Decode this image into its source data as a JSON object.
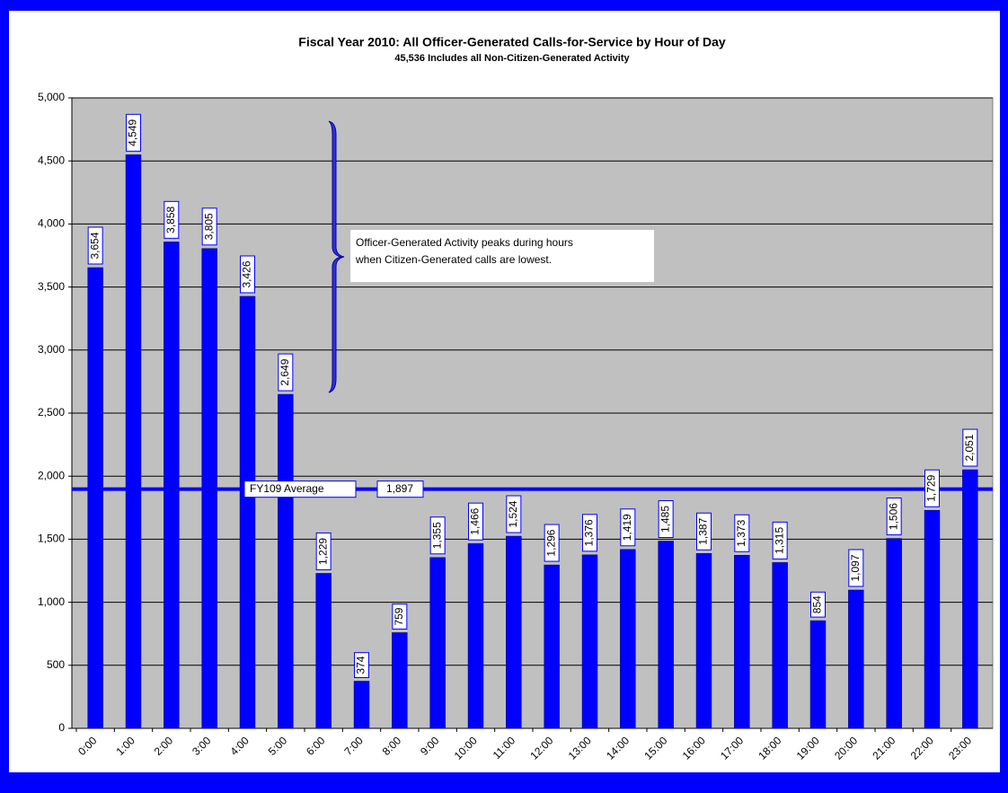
{
  "chart_data": {
    "type": "bar",
    "title": "Fiscal Year 2010: All Officer-Generated  Calls-for-Service by Hour of Day",
    "subtitle": "45,536 Includes all Non-Citizen-Generated  Activity",
    "categories": [
      "0:00",
      "1:00",
      "2:00",
      "3:00",
      "4:00",
      "5:00",
      "6:00",
      "7:00",
      "8:00",
      "9:00",
      "10:00",
      "11:00",
      "12:00",
      "13:00",
      "14:00",
      "15:00",
      "16:00",
      "17:00",
      "18:00",
      "19:00",
      "20:00",
      "21:00",
      "22:00",
      "23:00"
    ],
    "values": [
      3654,
      4549,
      3858,
      3805,
      3426,
      2649,
      1229,
      374,
      759,
      1355,
      1466,
      1524,
      1296,
      1376,
      1419,
      1485,
      1387,
      1373,
      1315,
      854,
      1097,
      1506,
      1729,
      2051
    ],
    "value_labels": [
      "3,654",
      "4,549",
      "3,858",
      "3,805",
      "3,426",
      "2,649",
      "1,229",
      "374",
      "759",
      "1,355",
      "1,466",
      "1,524",
      "1,296",
      "1,376",
      "1,419",
      "1,485",
      "1,387",
      "1,373",
      "1,315",
      "854",
      "1,097",
      "1,506",
      "1,729",
      "2,051"
    ],
    "color": "#0000ff",
    "ylim": [
      0,
      5000
    ],
    "yticks": [
      0,
      500,
      {
        "value": 1000,
        "label": "1,000"
      },
      {
        "value": 1500,
        "label": "1,500"
      },
      {
        "value": 2000,
        "label": "2,000"
      },
      {
        "value": 2500,
        "label": "2,500"
      },
      {
        "value": 3000,
        "label": "3,000"
      },
      {
        "value": 3500,
        "label": "3,500"
      },
      {
        "value": 4000,
        "label": "4,000"
      },
      {
        "value": 4500,
        "label": "4,500"
      },
      {
        "value": 5000,
        "label": "5,000"
      }
    ],
    "grid": true,
    "average": {
      "name": "FY109 Average",
      "value": 1897,
      "label": "1,897"
    },
    "annotation": [
      "Officer-Generated Activity peaks during hours",
      "when Citizen-Generated  calls are lowest."
    ]
  }
}
